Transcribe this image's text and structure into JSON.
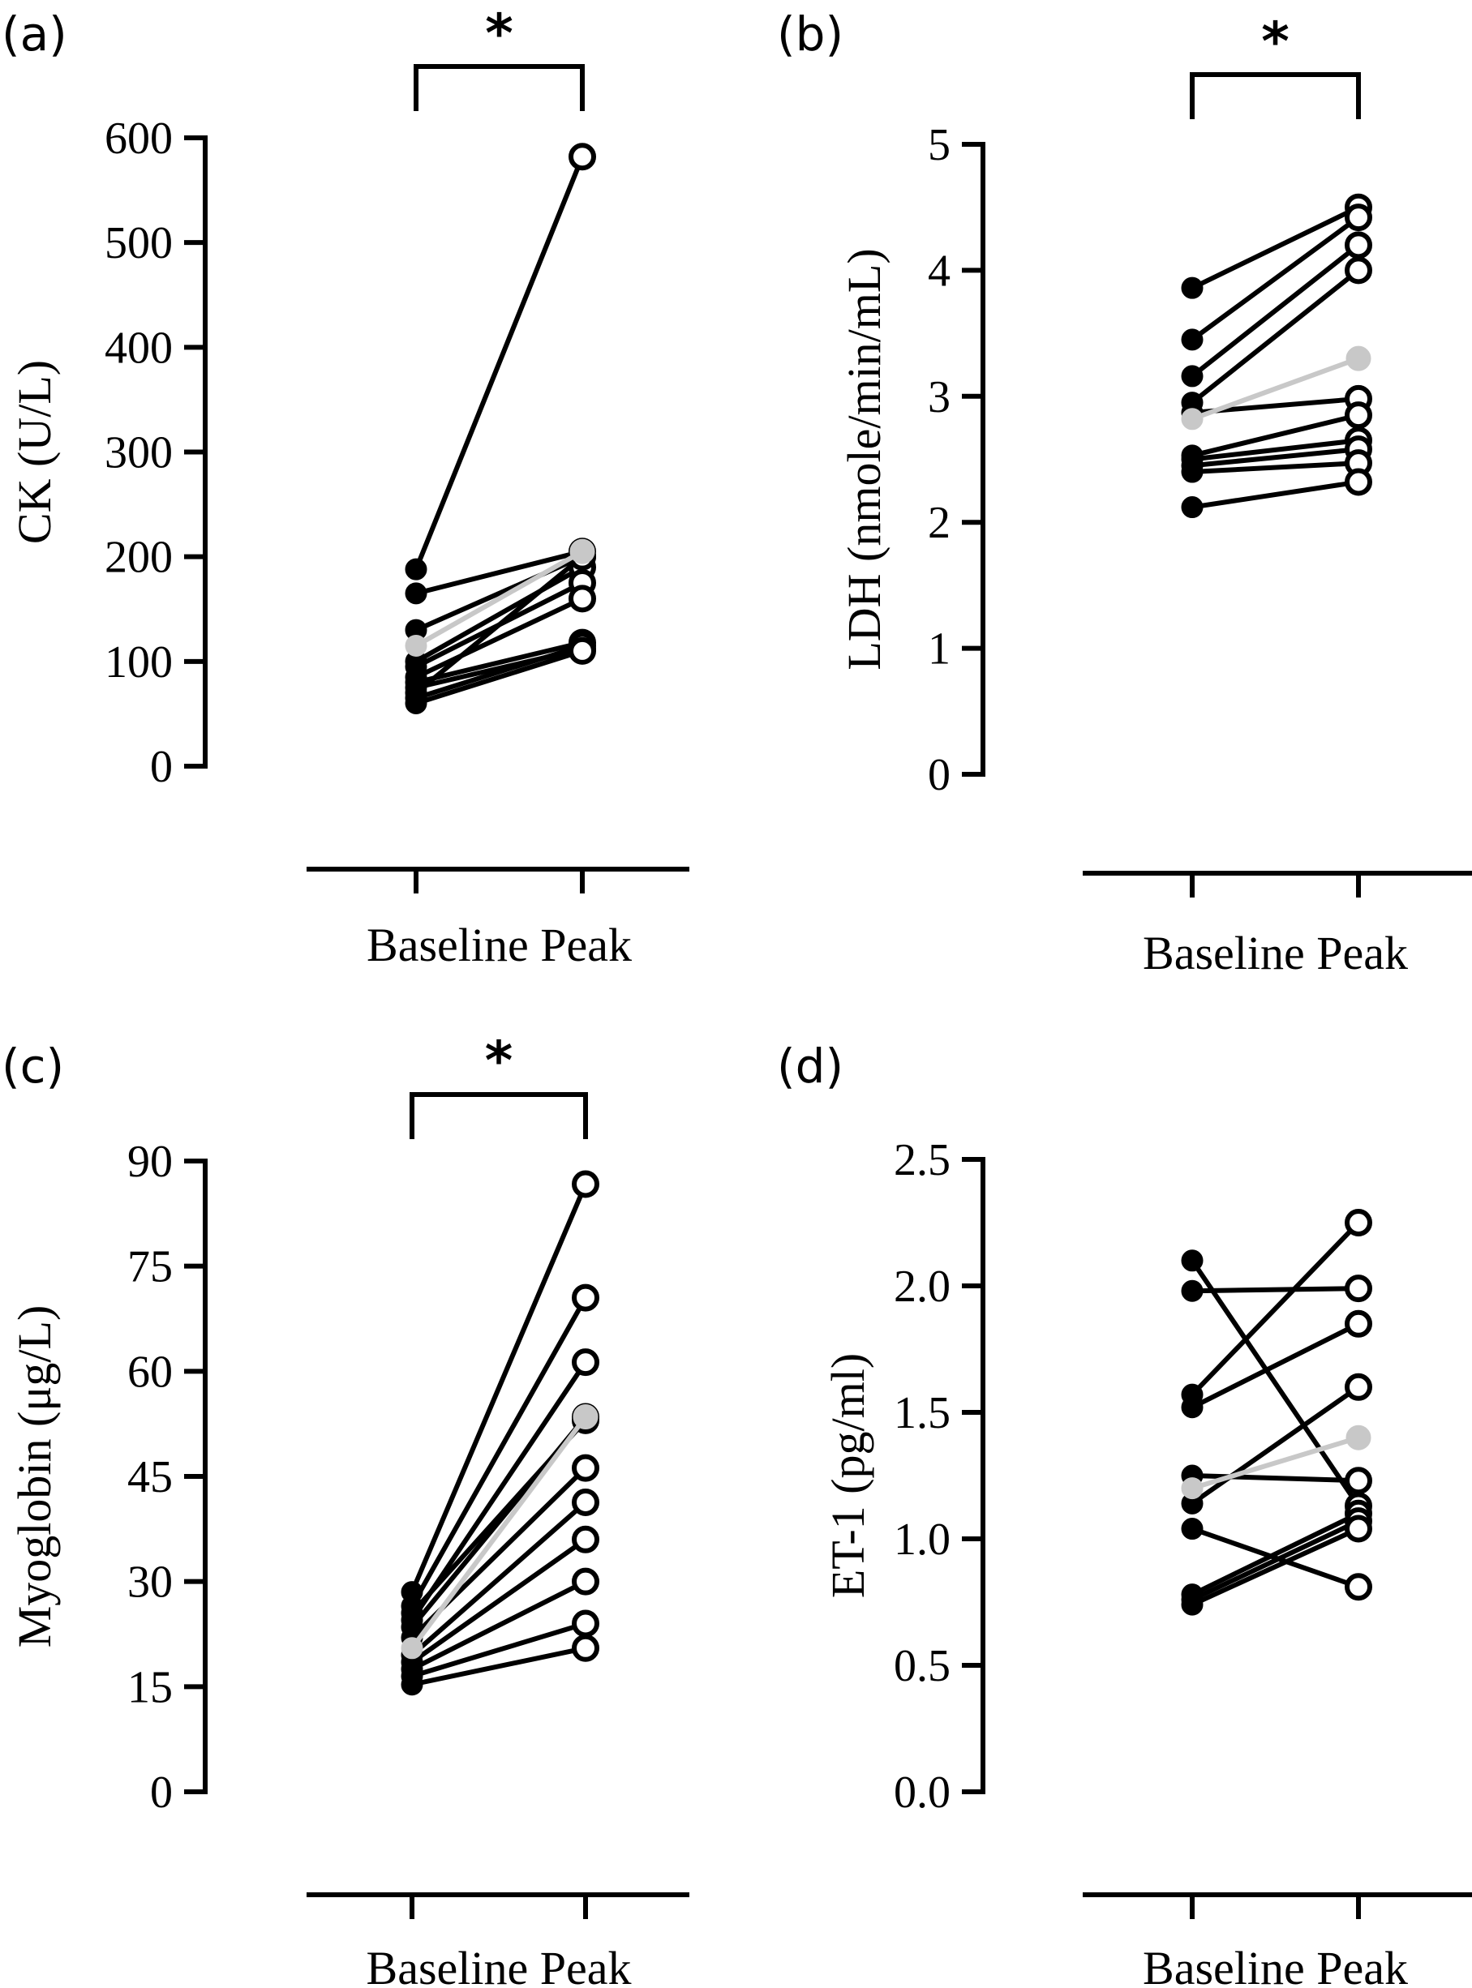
{
  "colors": {
    "ink": "#000000",
    "highlight": "#c8c8c8",
    "background": "#ffffff"
  },
  "chart_data": [
    {
      "type": "line",
      "panel": "(a)",
      "ylabel": "CK (U/L)",
      "categories": [
        "Baseline",
        "Peak"
      ],
      "category_labels": "Baseline Peak",
      "ylim": [
        0,
        600
      ],
      "yticks": [
        0,
        100,
        200,
        300,
        400,
        500,
        600
      ],
      "significance": "*",
      "highlight_series_index": 11,
      "series": [
        {
          "values": [
            188,
            582
          ]
        },
        {
          "values": [
            165,
            205
          ]
        },
        {
          "values": [
            130,
            200
          ]
        },
        {
          "values": [
            100,
            190
          ]
        },
        {
          "values": [
            95,
            175
          ]
        },
        {
          "values": [
            85,
            160
          ]
        },
        {
          "values": [
            80,
            118
          ]
        },
        {
          "values": [
            75,
            112
          ]
        },
        {
          "values": [
            70,
            200
          ]
        },
        {
          "values": [
            65,
            115
          ]
        },
        {
          "values": [
            60,
            110
          ]
        },
        {
          "values": [
            115,
            205
          ]
        }
      ]
    },
    {
      "type": "line",
      "panel": "(b)",
      "ylabel": "LDH (nmole/min/mL)",
      "categories": [
        "Baseline",
        "Peak"
      ],
      "category_labels": "Baseline Peak",
      "ylim": [
        0,
        5
      ],
      "yticks": [
        0,
        1,
        2,
        3,
        4,
        5
      ],
      "significance": "*",
      "highlight_series_index": 10,
      "series": [
        {
          "values": [
            3.86,
            4.5
          ]
        },
        {
          "values": [
            3.45,
            4.42
          ]
        },
        {
          "values": [
            3.16,
            4.2
          ]
        },
        {
          "values": [
            2.95,
            4.0
          ]
        },
        {
          "values": [
            2.87,
            2.98
          ]
        },
        {
          "values": [
            2.53,
            2.85
          ]
        },
        {
          "values": [
            2.5,
            2.65
          ]
        },
        {
          "values": [
            2.45,
            2.58
          ]
        },
        {
          "values": [
            2.4,
            2.47
          ]
        },
        {
          "values": [
            2.12,
            2.32
          ]
        },
        {
          "values": [
            2.82,
            3.3
          ]
        }
      ]
    },
    {
      "type": "line",
      "panel": "(c)",
      "ylabel": "Myoglobin (μg/L)",
      "categories": [
        "Baseline",
        "Peak"
      ],
      "category_labels": "Baseline Peak",
      "ylim": [
        0,
        90
      ],
      "yticks": [
        0,
        15,
        30,
        45,
        60,
        75,
        90
      ],
      "significance": "*",
      "highlight_series_index": 11,
      "series": [
        {
          "values": [
            28.5,
            86.7
          ]
        },
        {
          "values": [
            26.5,
            70.5
          ]
        },
        {
          "values": [
            24.5,
            61.3
          ]
        },
        {
          "values": [
            23.5,
            53.5
          ]
        },
        {
          "values": [
            22.0,
            46.2
          ]
        },
        {
          "values": [
            19.5,
            41.3
          ]
        },
        {
          "values": [
            18.5,
            36.0
          ]
        },
        {
          "values": [
            17.5,
            30.0
          ]
        },
        {
          "values": [
            16.5,
            24.0
          ]
        },
        {
          "values": [
            15.3,
            20.5
          ]
        },
        {
          "values": [
            25.5,
            53.0
          ]
        },
        {
          "values": [
            20.5,
            53.5
          ]
        }
      ]
    },
    {
      "type": "line",
      "panel": "(d)",
      "ylabel": "ET-1 (pg/ml)",
      "categories": [
        "Baseline",
        "Peak"
      ],
      "category_labels": "Baseline Peak",
      "ylim": [
        0,
        2.5
      ],
      "yticks": [
        "0.0",
        "0.5",
        "1.0",
        "1.5",
        "2.0",
        "2.5"
      ],
      "significance": "",
      "highlight_series_index": 10,
      "series": [
        {
          "values": [
            2.1,
            1.13
          ]
        },
        {
          "values": [
            1.98,
            1.99
          ]
        },
        {
          "values": [
            1.57,
            2.25
          ]
        },
        {
          "values": [
            1.52,
            1.85
          ]
        },
        {
          "values": [
            1.25,
            1.23
          ]
        },
        {
          "values": [
            1.14,
            1.6
          ]
        },
        {
          "values": [
            1.04,
            0.81
          ]
        },
        {
          "values": [
            0.78,
            1.1
          ]
        },
        {
          "values": [
            0.76,
            1.07
          ]
        },
        {
          "values": [
            0.74,
            1.04
          ]
        },
        {
          "values": [
            1.2,
            1.4
          ]
        }
      ]
    }
  ]
}
